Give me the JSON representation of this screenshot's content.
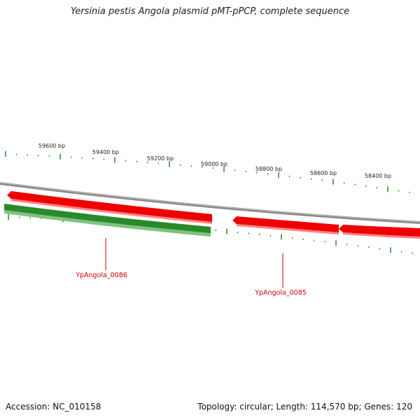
{
  "title": "Yersinia pestis Angola plasmid pMT-pPCP, complete sequence",
  "ruler_labels": [
    "59600 bp",
    "59400 bp",
    "59200 bp",
    "59000 bp",
    "58800 bp",
    "58600 bp",
    "58400 bp"
  ],
  "gene_labels": [
    "YpAngola_0086",
    "YpAngola_0085"
  ],
  "footer": {
    "accession": "Accession: NC_010158",
    "summary": "Topology: circular; Length: 114,570 bp; Genes: 120"
  },
  "colors": {
    "forward_gene": "#ee0000",
    "reverse_gene": "#2a8a2a",
    "backbone": "#8a8a8a",
    "tick": "#228b22",
    "label": "#d00000"
  }
}
